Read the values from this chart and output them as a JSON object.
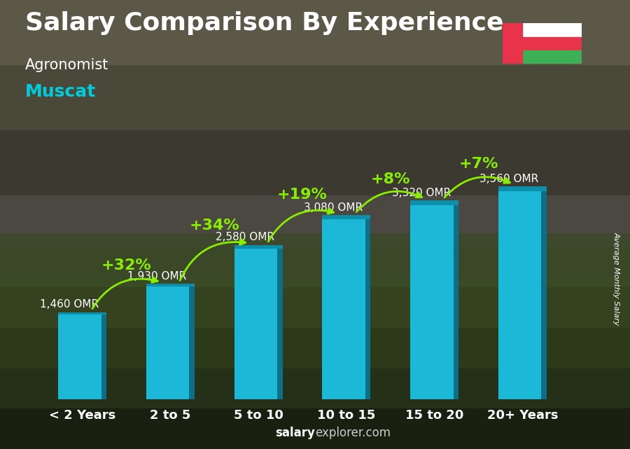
{
  "title": "Salary Comparison By Experience",
  "subtitle1": "Agronomist",
  "subtitle2": "Muscat",
  "ylabel": "Average Monthly Salary",
  "footer_bold": "salary",
  "footer_normal": "explorer.com",
  "categories": [
    "< 2 Years",
    "2 to 5",
    "5 to 10",
    "10 to 15",
    "15 to 20",
    "20+ Years"
  ],
  "values": [
    1460,
    1930,
    2580,
    3080,
    3320,
    3560
  ],
  "labels": [
    "1,460 OMR",
    "1,930 OMR",
    "2,580 OMR",
    "3,080 OMR",
    "3,320 OMR",
    "3,560 OMR"
  ],
  "pct_labels": [
    "+32%",
    "+34%",
    "+19%",
    "+8%",
    "+7%"
  ],
  "bar_color_main": "#1BB8D8",
  "bar_color_top": "#0D8FAA",
  "bar_color_side": "#0A6F87",
  "pct_color": "#88EE00",
  "label_color": "#FFFFFF",
  "title_color": "#FFFFFF",
  "subtitle1_color": "#FFFFFF",
  "subtitle2_color": "#00CCDD",
  "footer_color": "#CCCCCC",
  "footer_bold_color": "#FFFFFF",
  "title_fontsize": 26,
  "subtitle1_fontsize": 15,
  "subtitle2_fontsize": 18,
  "ylabel_fontsize": 8,
  "bar_label_fontsize": 11,
  "pct_fontsize": 16,
  "cat_fontsize": 13,
  "ylim": [
    0,
    4300
  ],
  "bg_colors": [
    "#2C4A2C",
    "#4A5A3A",
    "#3A3A28",
    "#5A5A40",
    "#6A6050",
    "#5A5848"
  ],
  "bottom_bar_color": "#4A7A3A"
}
